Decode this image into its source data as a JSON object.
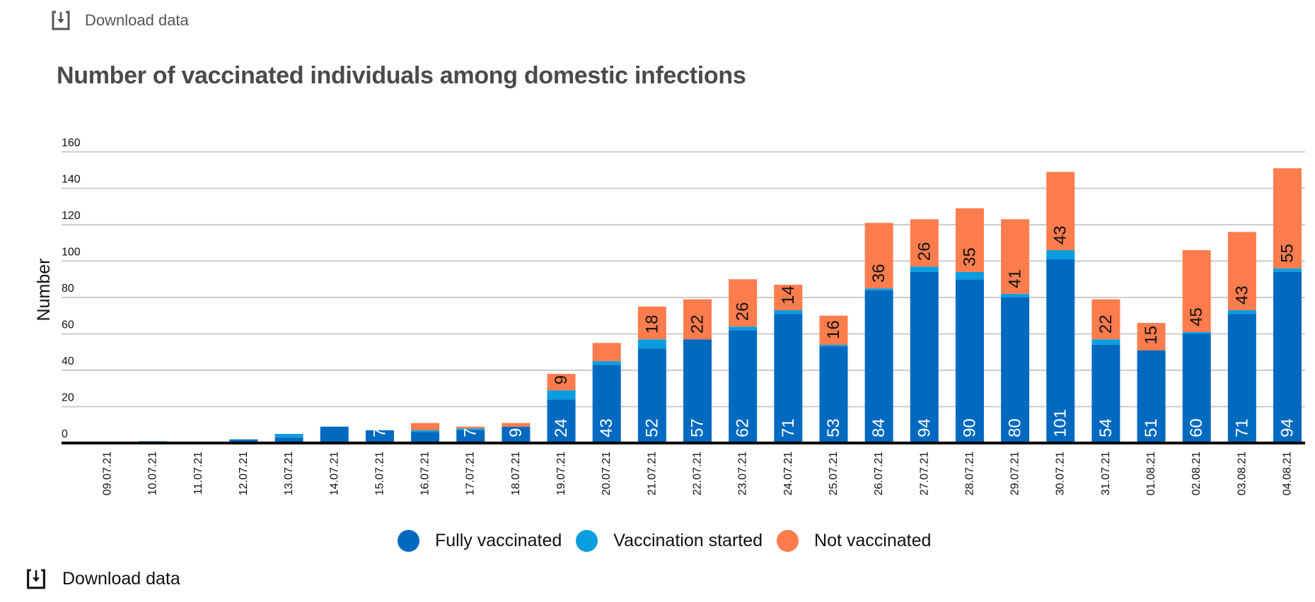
{
  "download_top": {
    "label": "Download data",
    "icon": "download-icon"
  },
  "download_bottom": {
    "label": "Download data",
    "icon": "download-icon"
  },
  "colors": {
    "fully": "#0069c0",
    "started": "#0a9de0",
    "not": "#ff7c4d",
    "grid": "#cccccc",
    "axis": "#000000",
    "title": "#4a4a4a"
  },
  "chart_data": {
    "type": "bar",
    "stacked": true,
    "title": "Number of vaccinated individuals among domestic infections",
    "xlabel": "",
    "ylabel": "Number",
    "ylim": [
      0,
      160
    ],
    "yticks": [
      0,
      20,
      40,
      60,
      80,
      100,
      120,
      140,
      160
    ],
    "grid": true,
    "legend_position": "bottom",
    "categories": [
      "09.07.21",
      "10.07.21",
      "11.07.21",
      "12.07.21",
      "13.07.21",
      "14.07.21",
      "15.07.21",
      "16.07.21",
      "17.07.21",
      "18.07.21",
      "19.07.21",
      "20.07.21",
      "21.07.21",
      "22.07.21",
      "23.07.21",
      "24.07.21",
      "25.07.21",
      "26.07.21",
      "27.07.21",
      "28.07.21",
      "29.07.21",
      "30.07.21",
      "31.07.21",
      "01.08.21",
      "02.08.21",
      "03.08.21",
      "04.08.21"
    ],
    "series": [
      {
        "name": "Fully vaccinated",
        "key": "fully",
        "values": [
          0,
          0,
          0,
          2,
          3,
          9,
          7,
          6,
          7,
          9,
          24,
          43,
          52,
          57,
          62,
          71,
          53,
          84,
          94,
          90,
          80,
          101,
          54,
          51,
          60,
          71,
          94
        ],
        "labels": [
          null,
          null,
          null,
          null,
          null,
          null,
          "7",
          null,
          "7",
          "9",
          "24",
          "43",
          "52",
          "57",
          "62",
          "71",
          "53",
          "84",
          "94",
          "90",
          "80",
          "101",
          "54",
          "51",
          "60",
          "71",
          "94"
        ]
      },
      {
        "name": "Vaccination started",
        "key": "started",
        "values": [
          0,
          1,
          0,
          0,
          2,
          0,
          0,
          1,
          1,
          0,
          5,
          2,
          5,
          0,
          2,
          2,
          1,
          1,
          3,
          4,
          2,
          5,
          3,
          0,
          1,
          2,
          2
        ],
        "labels": [
          null,
          null,
          null,
          null,
          null,
          null,
          null,
          null,
          null,
          null,
          null,
          null,
          null,
          null,
          null,
          null,
          null,
          null,
          null,
          null,
          null,
          null,
          null,
          null,
          null,
          null,
          null
        ]
      },
      {
        "name": "Not vaccinated",
        "key": "not",
        "values": [
          0,
          0,
          0,
          0,
          0,
          0,
          0,
          4,
          1,
          2,
          9,
          10,
          18,
          22,
          26,
          14,
          16,
          36,
          26,
          35,
          41,
          43,
          22,
          15,
          45,
          43,
          55
        ],
        "labels": [
          null,
          null,
          null,
          null,
          null,
          null,
          null,
          null,
          null,
          null,
          "9",
          null,
          "18",
          "22",
          "26",
          "14",
          "16",
          "36",
          "26",
          "35",
          "41",
          "43",
          "22",
          "15",
          "45",
          "43",
          "55"
        ]
      }
    ]
  }
}
